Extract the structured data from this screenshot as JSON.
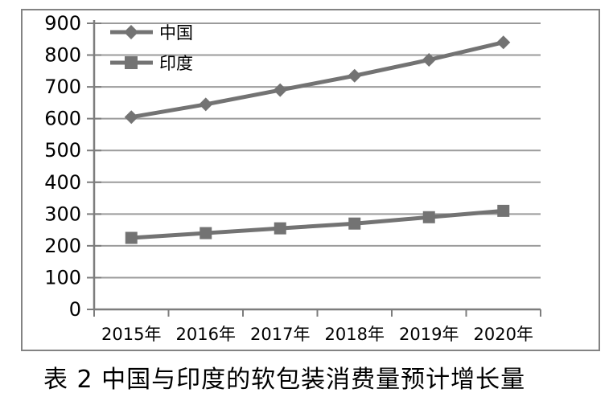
{
  "caption": "表 2  中国与印度的软包装消费量预计增长量",
  "chart_data": {
    "type": "line",
    "categories": [
      "2015年",
      "2016年",
      "2017年",
      "2018年",
      "2019年",
      "2020年"
    ],
    "series": [
      {
        "name": "中国",
        "marker": "diamond",
        "values": [
          605,
          645,
          690,
          735,
          785,
          840
        ]
      },
      {
        "name": "印度",
        "marker": "square",
        "values": [
          225,
          240,
          255,
          270,
          290,
          310
        ]
      }
    ],
    "ylim": [
      0,
      900
    ],
    "ytick_step": 100,
    "grid": true,
    "legend_position": "top-left",
    "colors": {
      "series": "#737373",
      "grid": "#9b9b9b",
      "axis": "#7d7d7d",
      "label": "#000000"
    }
  }
}
